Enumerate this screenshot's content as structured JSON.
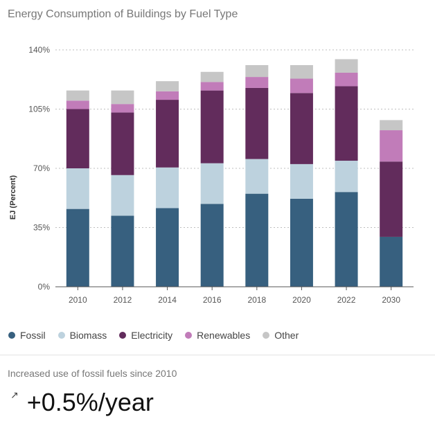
{
  "chart_data": {
    "type": "bar",
    "stacked": true,
    "title": "Energy Consumption of Buildings by Fuel Type",
    "xlabel": "",
    "ylabel": "EJ (Percent)",
    "ylim": [
      0,
      140
    ],
    "yticks": [
      0,
      35,
      70,
      105,
      140
    ],
    "ytick_labels": [
      "0%",
      "35%",
      "70%",
      "105%",
      "140%"
    ],
    "grid": true,
    "legend_position": "bottom-left",
    "categories": [
      "2010",
      "2012",
      "2014",
      "2016",
      "2018",
      "2020",
      "2022",
      "2030"
    ],
    "series": [
      {
        "name": "Fossil",
        "color": "#37607f",
        "values": [
          46,
          42,
          46.5,
          49,
          55,
          52,
          56,
          29.5
        ]
      },
      {
        "name": "Biomass",
        "color": "#bdd2de",
        "values": [
          24,
          24,
          24,
          24,
          20.5,
          20.5,
          18.5,
          0
        ]
      },
      {
        "name": "Electricity",
        "color": "#622c5c",
        "values": [
          35,
          37,
          40,
          43,
          42,
          42,
          44,
          44.5
        ]
      },
      {
        "name": "Renewables",
        "color": "#c17cb9",
        "values": [
          5,
          5,
          5,
          5,
          6.5,
          8.5,
          8,
          18.5
        ]
      },
      {
        "name": "Other",
        "color": "#c6c6c6",
        "values": [
          6,
          8,
          6,
          6,
          7,
          8,
          8,
          6
        ]
      }
    ]
  },
  "insight": {
    "label": "Increased use of fossil fuels since 2010",
    "arrow": "↗",
    "value": "+0.5%/year"
  }
}
